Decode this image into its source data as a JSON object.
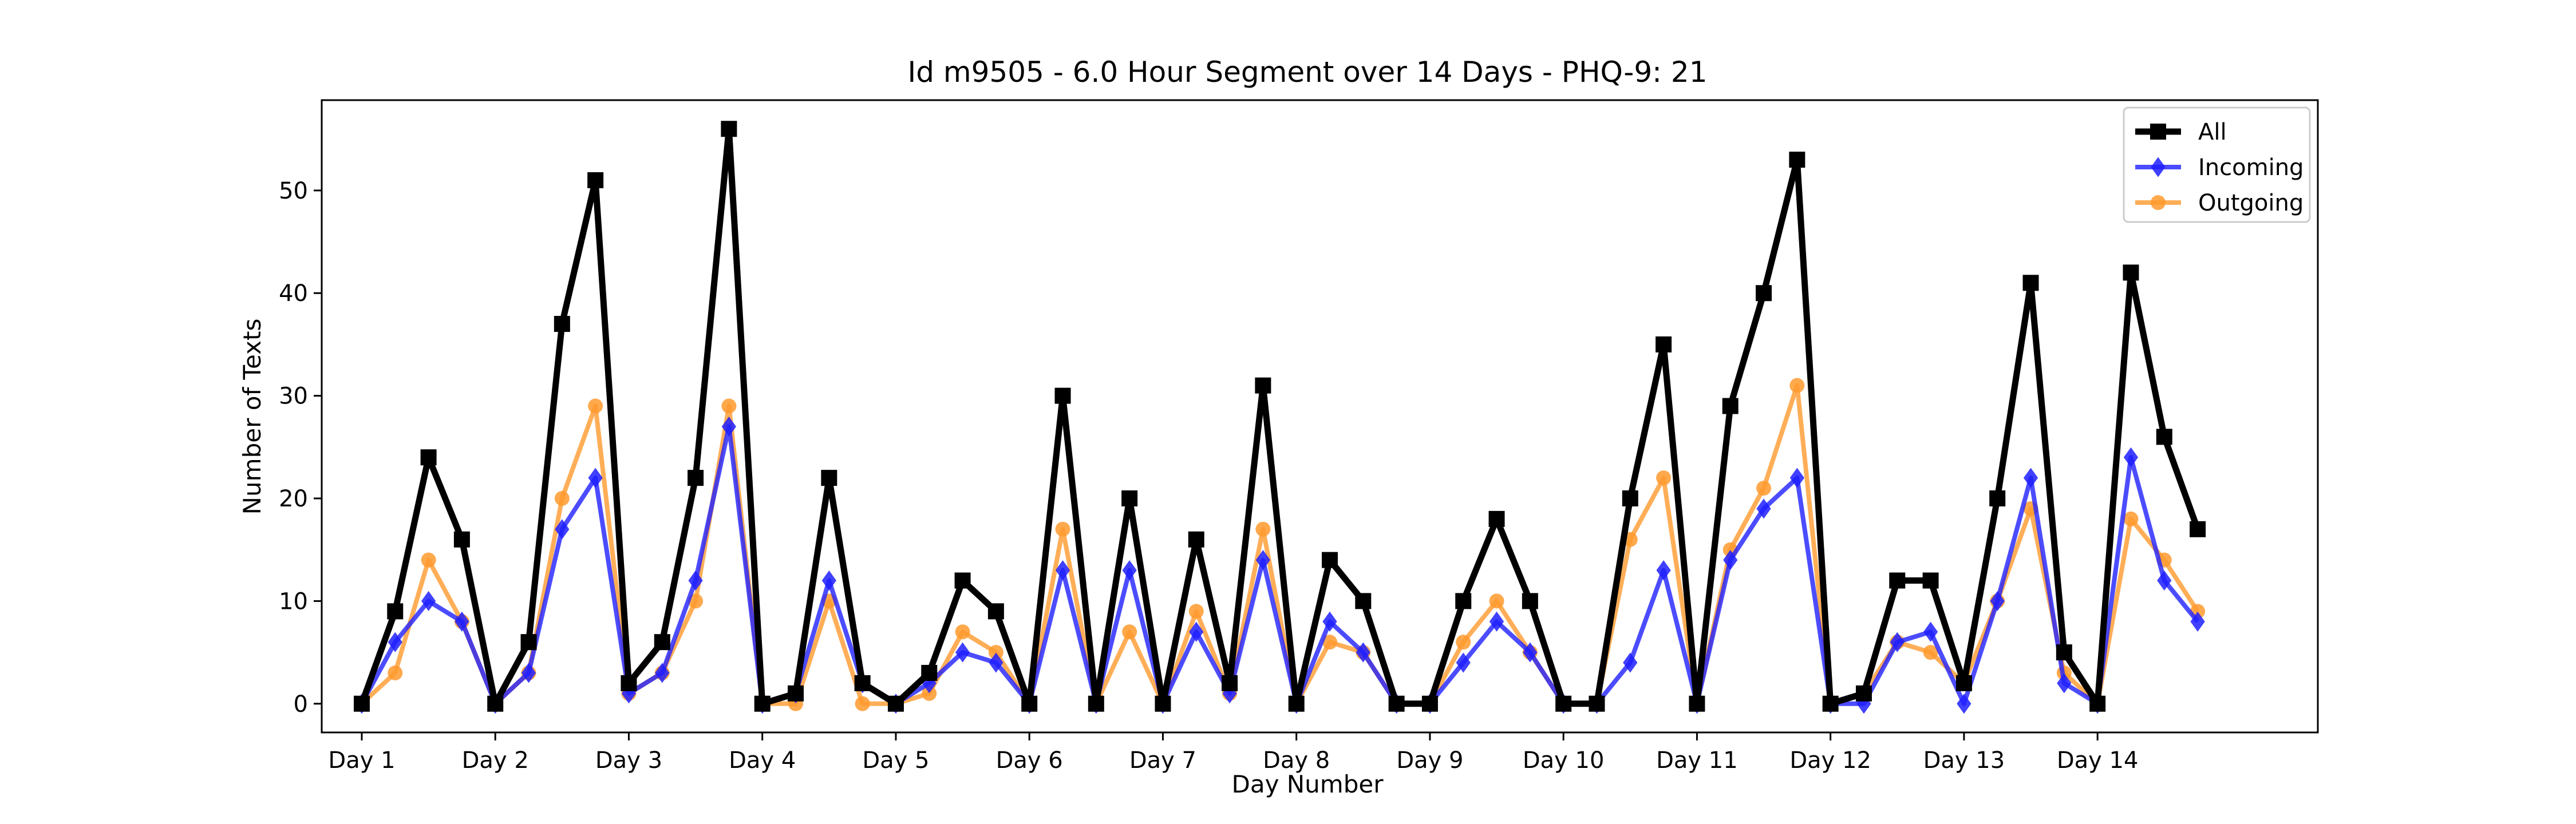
{
  "chart_data": {
    "type": "line",
    "title": "Id m9505 - 6.0 Hour Segment over 14 Days - PHQ-9: 21",
    "xlabel": "Day Number",
    "ylabel": "Number of Texts",
    "x_tick_labels": [
      "Day 1",
      "Day 2",
      "Day 3",
      "Day 4",
      "Day 5",
      "Day 6",
      "Day 7",
      "Day 8",
      "Day 9",
      "Day 10",
      "Day 11",
      "Day 12",
      "Day 13",
      "Day 14"
    ],
    "y_ticks": [
      0,
      10,
      20,
      30,
      40,
      50
    ],
    "xlim": [
      -1.2,
      58.6
    ],
    "ylim": [
      -2.8,
      58.8
    ],
    "grid": false,
    "legend_position": "top-right",
    "series": [
      {
        "name": "All",
        "color": "#000000",
        "marker": "square",
        "values": [
          0,
          9,
          24,
          16,
          0,
          6,
          37,
          51,
          2,
          6,
          22,
          56,
          0,
          1,
          22,
          2,
          0,
          3,
          12,
          9,
          0,
          30,
          0,
          20,
          0,
          16,
          2,
          31,
          0,
          14,
          10,
          0,
          0,
          10,
          18,
          10,
          0,
          0,
          20,
          35,
          0,
          29,
          40,
          53,
          0,
          1,
          12,
          12,
          2,
          20,
          41,
          5,
          0,
          42,
          26,
          17
        ]
      },
      {
        "name": "Incoming",
        "color": "#1f1fff",
        "marker": "diamond",
        "values": [
          0,
          6,
          10,
          8,
          0,
          3,
          17,
          22,
          1,
          3,
          12,
          27,
          0,
          1,
          12,
          2,
          0,
          2,
          5,
          4,
          0,
          13,
          0,
          13,
          0,
          7,
          1,
          14,
          0,
          8,
          5,
          0,
          0,
          4,
          8,
          5,
          0,
          0,
          4,
          13,
          0,
          14,
          19,
          22,
          0,
          0,
          6,
          7,
          0,
          10,
          22,
          2,
          0,
          24,
          12,
          8
        ]
      },
      {
        "name": "Outgoing",
        "color": "#ff9a2e",
        "marker": "circle",
        "values": [
          0,
          3,
          14,
          8,
          0,
          3,
          20,
          29,
          1,
          3,
          10,
          29,
          0,
          0,
          10,
          0,
          0,
          1,
          7,
          5,
          0,
          17,
          0,
          7,
          0,
          9,
          1,
          17,
          0,
          6,
          5,
          0,
          0,
          6,
          10,
          5,
          0,
          0,
          16,
          22,
          0,
          15,
          21,
          31,
          0,
          1,
          6,
          5,
          2,
          10,
          19,
          3,
          0,
          18,
          14,
          9
        ]
      }
    ]
  }
}
